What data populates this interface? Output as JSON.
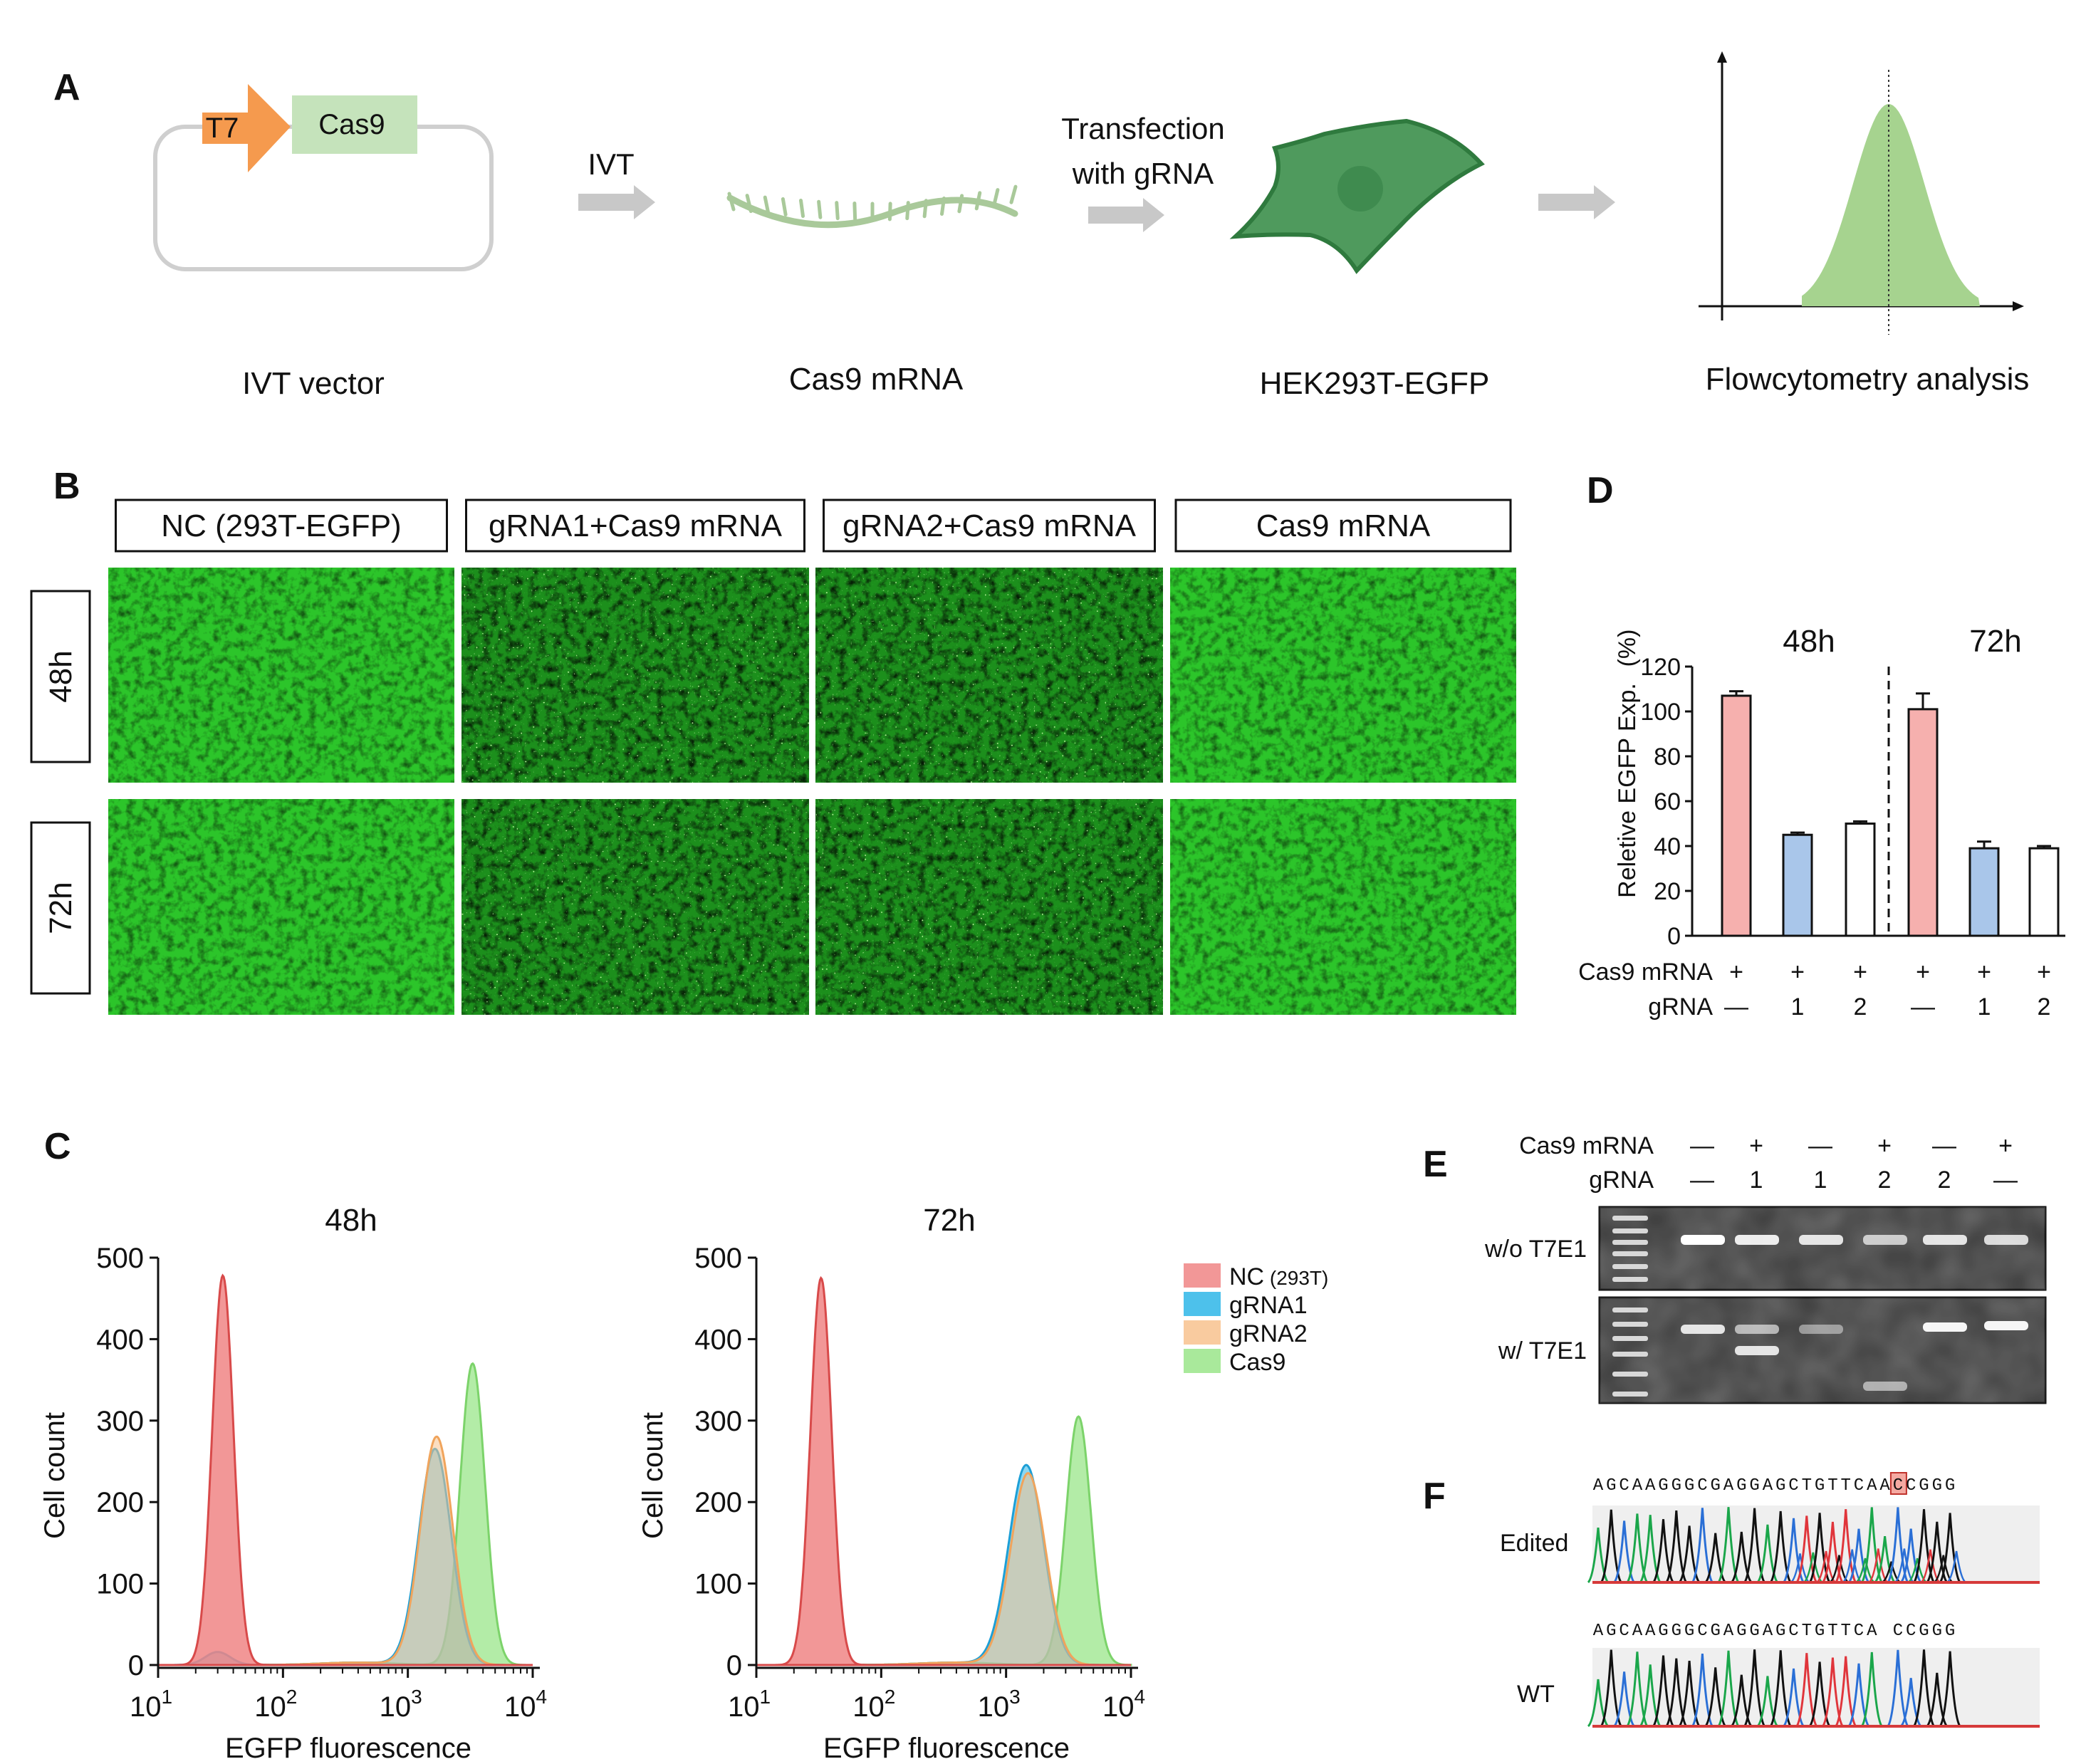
{
  "figure": {
    "panels": {
      "a": "A",
      "b": "B",
      "c": "C",
      "d": "D",
      "e": "E",
      "f": "F"
    },
    "colors": {
      "t7": "#f59a4e",
      "cas9_box": "#c5e3bb",
      "vector": "#cfcfcf",
      "arrow": "#c8c8c8",
      "mrna": "#a9c99a",
      "cell_fill": "#4f9a5d",
      "cell_stroke": "#2f7a3e",
      "flow_peak": "#a6d38f",
      "micro_green": "#22b322",
      "nc": "#f08585",
      "gRNA1": "#2eb6e8",
      "gRNA2": "#f8c28e",
      "cas9_hist": "#9ae58a",
      "bar_pink": "#f6b0ae",
      "bar_blue": "#a9c6ea",
      "gel_bg": "#4a4a4a",
      "trace_green": "#1aa64a",
      "trace_blue": "#2a6fd6",
      "trace_red": "#e0353b",
      "trace_black": "#111111"
    }
  },
  "panel_a": {
    "t7": "T7",
    "cas9": "Cas9",
    "ivt": "IVT",
    "transfection_line1": "Transfection",
    "transfection_line2": "with gRNA",
    "label_vector": "IVT vector",
    "label_mrna": "Cas9 mRNA",
    "label_cell": "HEK293T-EGFP",
    "label_flow": "Flowcytometry analysis"
  },
  "panel_b": {
    "columns": [
      "NC (293T-EGFP)",
      "gRNA1+Cas9 mRNA",
      "gRNA2+Cas9 mRNA",
      "Cas9 mRNA"
    ],
    "rows": [
      "48h",
      "72h"
    ],
    "brightness": [
      [
        1.0,
        0.55,
        0.62,
        1.05
      ],
      [
        1.0,
        0.5,
        0.52,
        1.02
      ]
    ]
  },
  "panel_c": {
    "charts": [
      {
        "type": "area",
        "title": "48h",
        "xlabel": "EGFP fluorescence",
        "ylabel": "Cell count",
        "xscale": "log",
        "xlim": [
          10,
          10000
        ],
        "ylim": [
          0,
          500
        ],
        "yticks": [
          "0",
          "100",
          "200",
          "300",
          "400",
          "500"
        ],
        "xticks": [
          {
            "base": "10",
            "exp": "1"
          },
          {
            "base": "10",
            "exp": "2"
          },
          {
            "base": "10",
            "exp": "3"
          },
          {
            "base": "10",
            "exp": "4"
          }
        ],
        "series": [
          {
            "name": "Cas9",
            "peaks": [
              [
                3300,
                370,
                0.1
              ]
            ]
          },
          {
            "name": "gRNA1",
            "peaks": [
              [
                1650,
                265,
                0.13
              ],
              [
                30,
                16,
                0.1
              ]
            ]
          },
          {
            "name": "gRNA2",
            "peaks": [
              [
                1700,
                280,
                0.13
              ]
            ]
          },
          {
            "name": "NC",
            "peaks": [
              [
                33,
                478,
                0.085
              ]
            ]
          }
        ]
      },
      {
        "type": "area",
        "title": "72h",
        "xlabel": "EGFP fluorescence",
        "ylabel": "Cell count",
        "xscale": "log",
        "xlim": [
          10,
          10000
        ],
        "ylim": [
          0,
          500
        ],
        "yticks": [
          "0",
          "100",
          "200",
          "300",
          "400",
          "500"
        ],
        "xticks": [
          {
            "base": "10",
            "exp": "1"
          },
          {
            "base": "10",
            "exp": "2"
          },
          {
            "base": "10",
            "exp": "3"
          },
          {
            "base": "10",
            "exp": "4"
          }
        ],
        "series": [
          {
            "name": "Cas9",
            "peaks": [
              [
                3800,
                305,
                0.1
              ]
            ]
          },
          {
            "name": "gRNA1",
            "peaks": [
              [
                1450,
                245,
                0.14
              ]
            ]
          },
          {
            "name": "gRNA2",
            "peaks": [
              [
                1500,
                235,
                0.14
              ]
            ]
          },
          {
            "name": "NC",
            "peaks": [
              [
                33,
                475,
                0.085
              ]
            ]
          }
        ]
      }
    ],
    "legend": [
      {
        "name": "NC",
        "text": "NC",
        "sub": "(293T)"
      },
      {
        "name": "gRNA1",
        "text": "gRNA1",
        "sub": ""
      },
      {
        "name": "gRNA2",
        "text": "gRNA2",
        "sub": ""
      },
      {
        "name": "Cas9",
        "text": "Cas9",
        "sub": ""
      }
    ]
  },
  "chart_data": {
    "type": "bar",
    "ylabel": "Reletive EGFP Exp.",
    "yunit": "(%)",
    "ylim": [
      0,
      120
    ],
    "yticks": [
      "0",
      "20",
      "40",
      "60",
      "80",
      "100",
      "120"
    ],
    "groups": [
      "48h",
      "72h"
    ],
    "row_labels": [
      "Cas9 mRNA",
      "gRNA"
    ],
    "bars": [
      {
        "group": "48h",
        "cas9": "+",
        "grna": "—",
        "value": 107,
        "err": 2,
        "color": "pink"
      },
      {
        "group": "48h",
        "cas9": "+",
        "grna": "1",
        "value": 45,
        "err": 1,
        "color": "blue"
      },
      {
        "group": "48h",
        "cas9": "+",
        "grna": "2",
        "value": 50,
        "err": 1,
        "color": "white"
      },
      {
        "group": "72h",
        "cas9": "+",
        "grna": "—",
        "value": 101,
        "err": 7,
        "color": "pink"
      },
      {
        "group": "72h",
        "cas9": "+",
        "grna": "1",
        "value": 39,
        "err": 3,
        "color": "blue"
      },
      {
        "group": "72h",
        "cas9": "+",
        "grna": "2",
        "value": 39,
        "err": 1,
        "color": "white"
      }
    ]
  },
  "panel_e": {
    "row_labels": [
      "Cas9 mRNA",
      "gRNA"
    ],
    "lanes": [
      {
        "cas9": "—",
        "grna": "—"
      },
      {
        "cas9": "+",
        "grna": "1"
      },
      {
        "cas9": "—",
        "grna": "1"
      },
      {
        "cas9": "+",
        "grna": "2"
      },
      {
        "cas9": "—",
        "grna": "2"
      },
      {
        "cas9": "+",
        "grna": "—"
      }
    ],
    "gel_labels": [
      "w/o T7E1",
      "w/  T7E1"
    ]
  },
  "panel_f": {
    "edited_seq": "AGCAAGGGCGAGGAGCTGTTCAACCGGG",
    "wt_seq": "AGCAAGGGCGAGGAGCTGTTCA CCGGG",
    "highlight_index": 23,
    "labels": [
      "Edited",
      "WT"
    ]
  }
}
